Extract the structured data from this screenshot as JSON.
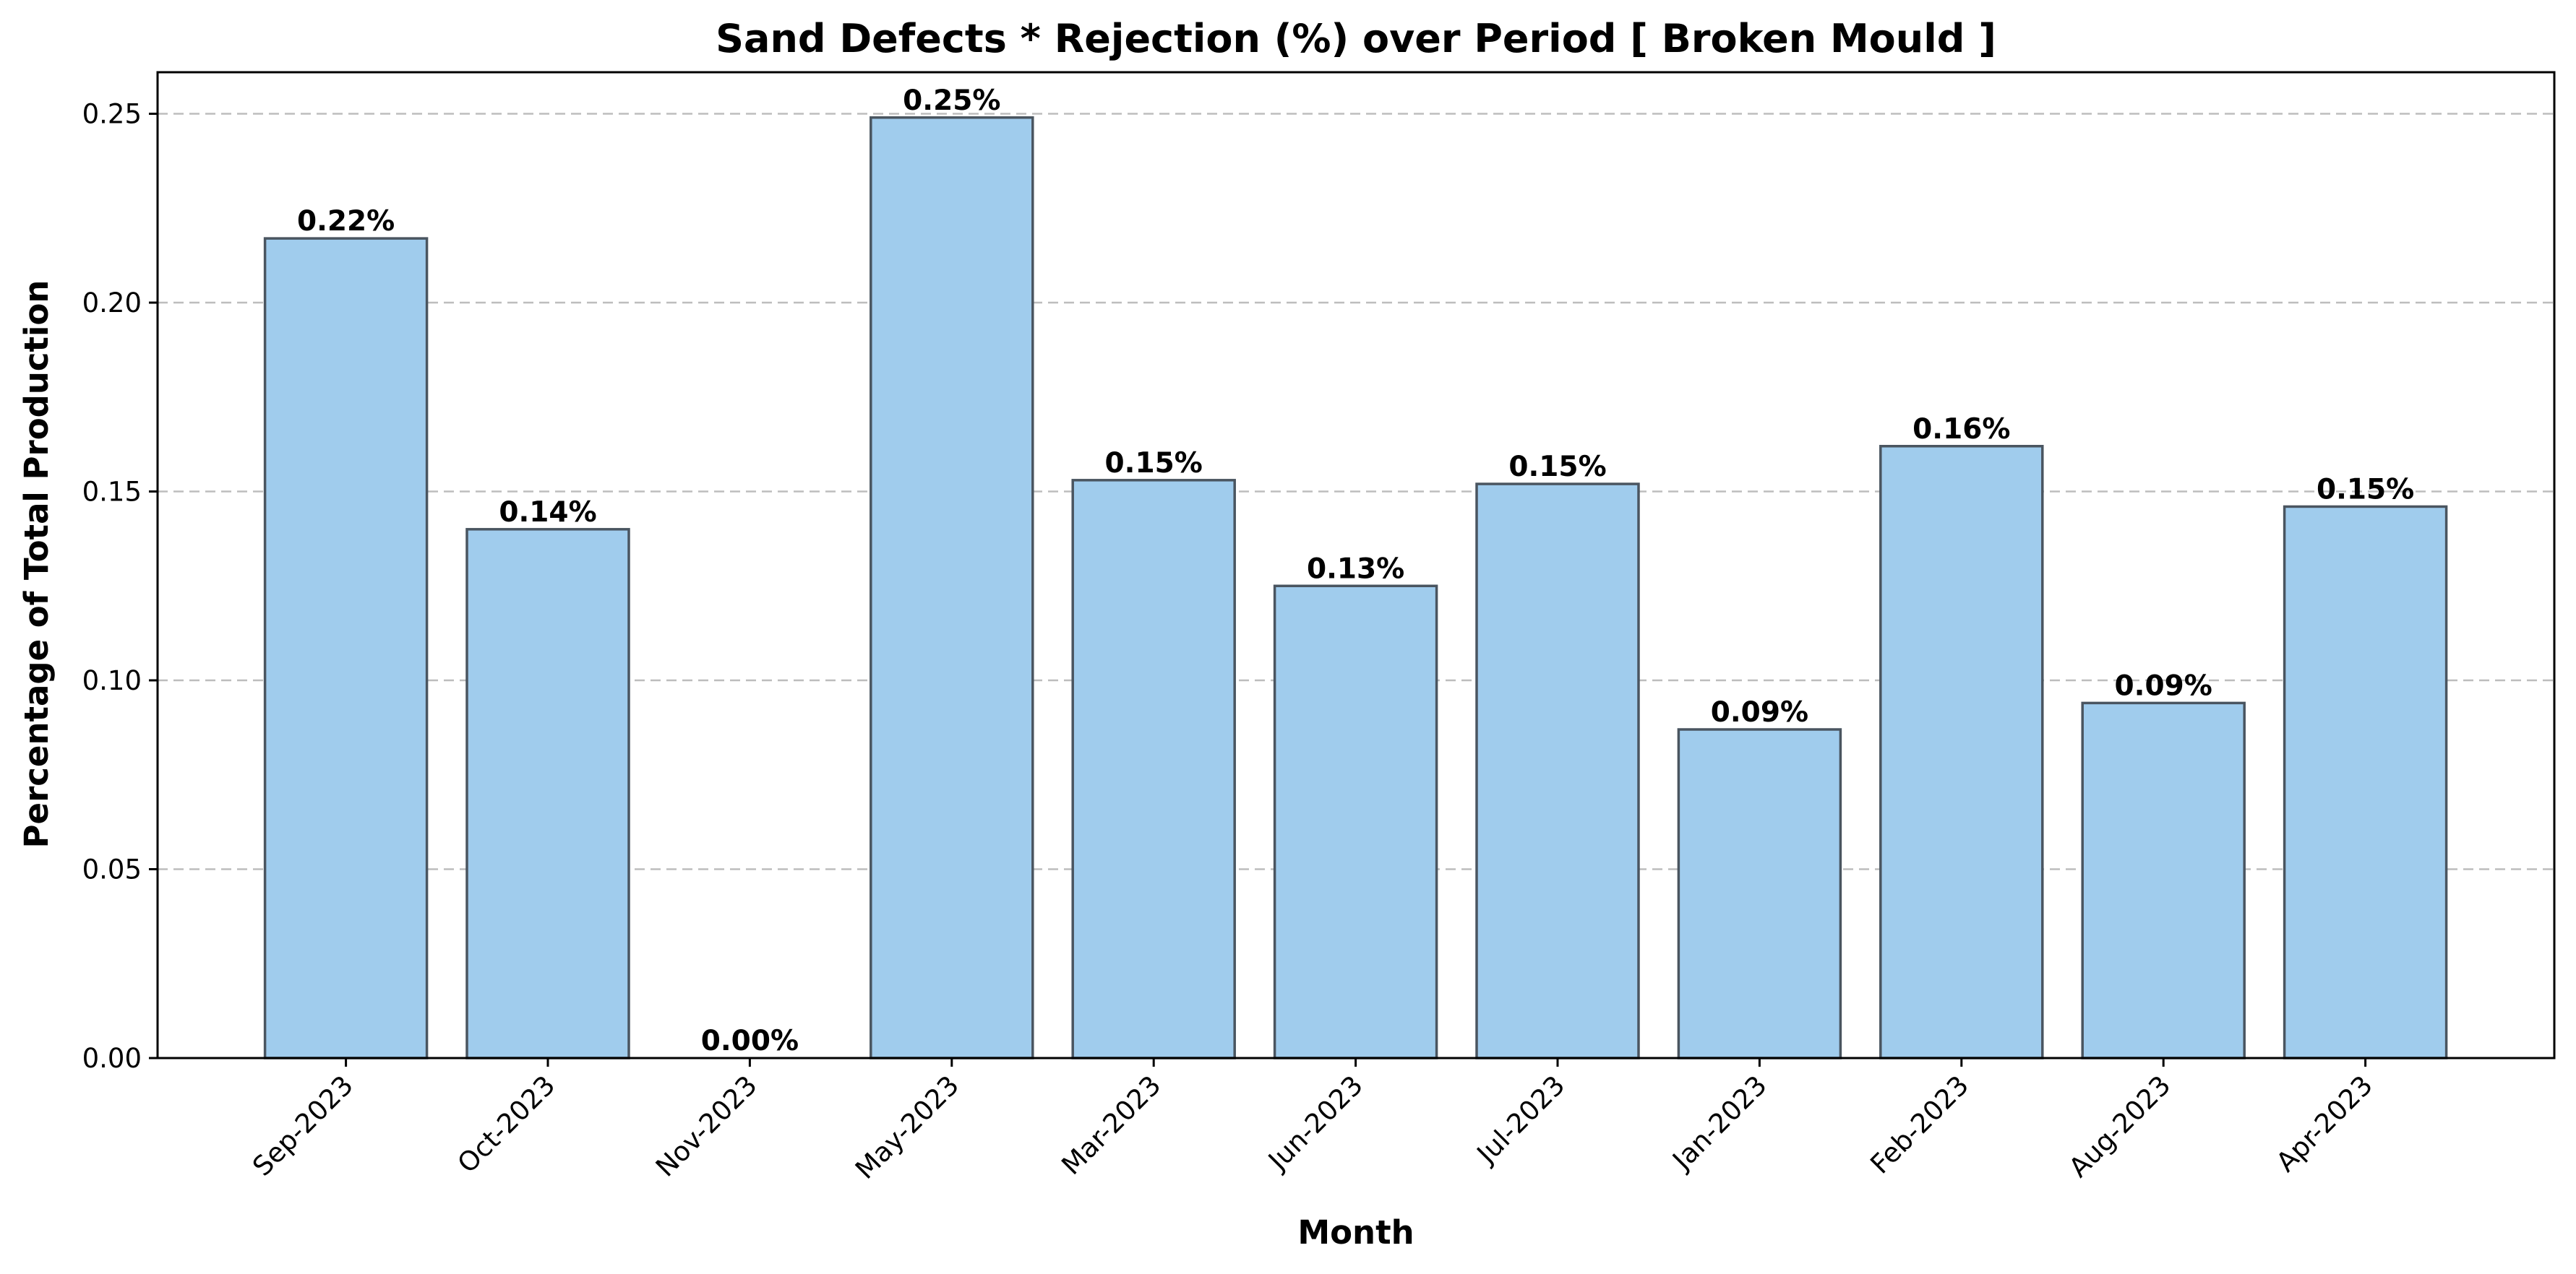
{
  "chart_data": {
    "type": "bar",
    "title": "Sand Defects * Rejection (%) over Period [ Broken Mould ]",
    "xlabel": "Month",
    "ylabel": "Percentage of Total Production",
    "categories": [
      "Sep-2023",
      "Oct-2023",
      "Nov-2023",
      "May-2023",
      "Mar-2023",
      "Jun-2023",
      "Jul-2023",
      "Jan-2023",
      "Feb-2023",
      "Aug-2023",
      "Apr-2023"
    ],
    "values": [
      0.217,
      0.14,
      0.0,
      0.249,
      0.153,
      0.125,
      0.152,
      0.087,
      0.162,
      0.094,
      0.146
    ],
    "data_labels": [
      "0.22%",
      "0.14%",
      "0.00%",
      "0.25%",
      "0.15%",
      "0.13%",
      "0.15%",
      "0.09%",
      "0.16%",
      "0.09%",
      "0.15%"
    ],
    "ylim": [
      0,
      0.261
    ],
    "yticks": [
      "0.00",
      "0.05",
      "0.10",
      "0.15",
      "0.20",
      "0.25"
    ],
    "ytick_values": [
      0,
      0.05,
      0.1,
      0.15,
      0.2,
      0.25
    ],
    "grid": "y",
    "legend": "none",
    "colors": {
      "bar_fill": "#a0cced",
      "bar_edge": "#4a5560"
    }
  }
}
